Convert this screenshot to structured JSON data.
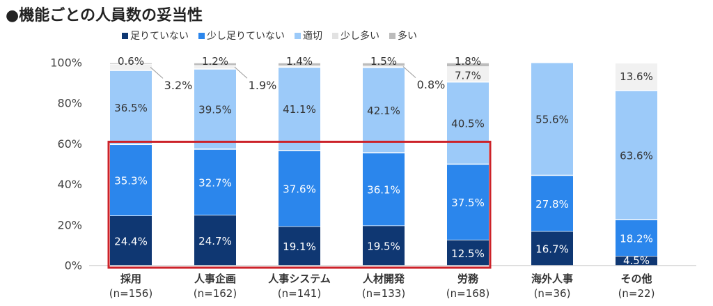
{
  "chart_data": {
    "type": "bar",
    "stacked": true,
    "title": "●機能ごとの人員数の妥当性",
    "categories": [
      {
        "name": "採用",
        "n": "(n=156)"
      },
      {
        "name": "人事企画",
        "n": "(n=162)"
      },
      {
        "name": "人事システム",
        "n": "(n=141)"
      },
      {
        "name": "人材開発",
        "n": "(n=133)"
      },
      {
        "name": "労務",
        "n": "(n=168)"
      },
      {
        "name": "海外人事",
        "n": "(n=36)"
      },
      {
        "name": "その他",
        "n": "(n=22)"
      }
    ],
    "series": [
      {
        "name": "足りていない",
        "color": "#0f3772",
        "values": [
          24.4,
          24.7,
          19.1,
          19.5,
          12.5,
          16.7,
          4.5
        ],
        "labels": [
          "24.4%",
          "24.7%",
          "19.1%",
          "19.5%",
          "12.5%",
          "16.7%",
          "4.5%"
        ]
      },
      {
        "name": "少し足りていない",
        "color": "#2b86ec",
        "values": [
          35.3,
          32.7,
          37.6,
          36.1,
          37.5,
          27.8,
          18.2
        ],
        "labels": [
          "35.3%",
          "32.7%",
          "37.6%",
          "36.1%",
          "37.5%",
          "27.8%",
          "18.2%"
        ]
      },
      {
        "name": "適切",
        "color": "#9ccaf9",
        "values": [
          36.5,
          39.5,
          41.1,
          42.1,
          40.5,
          55.6,
          63.6
        ],
        "labels": [
          "36.5%",
          "39.5%",
          "41.1%",
          "42.1%",
          "40.5%",
          "55.6%",
          "63.6%"
        ]
      },
      {
        "name": "少し多い",
        "color": "#f1f1f1",
        "values": [
          3.2,
          1.9,
          0.8,
          0.8,
          7.7,
          0,
          13.6
        ],
        "labels": [
          "3.2%",
          "1.9%",
          "",
          "0.8%",
          "7.7%",
          "",
          "13.6%"
        ]
      },
      {
        "name": "多い",
        "color": "#bcbcbc",
        "values": [
          0.6,
          1.2,
          1.4,
          1.5,
          1.8,
          0,
          0
        ],
        "labels": [
          "0.6%",
          "1.2%",
          "1.4%",
          "1.5%",
          "1.8%",
          "",
          ""
        ]
      }
    ],
    "ylim": [
      0,
      100
    ],
    "yticks": [
      0,
      20,
      40,
      60,
      80,
      100
    ],
    "ytick_labels": [
      "0%",
      "20%",
      "40%",
      "60%",
      "80%",
      "100%"
    ],
    "legend_position": "top",
    "highlight": {
      "color": "#cc2229",
      "from_category": 0,
      "to_category": 4,
      "y_top": 60
    }
  }
}
